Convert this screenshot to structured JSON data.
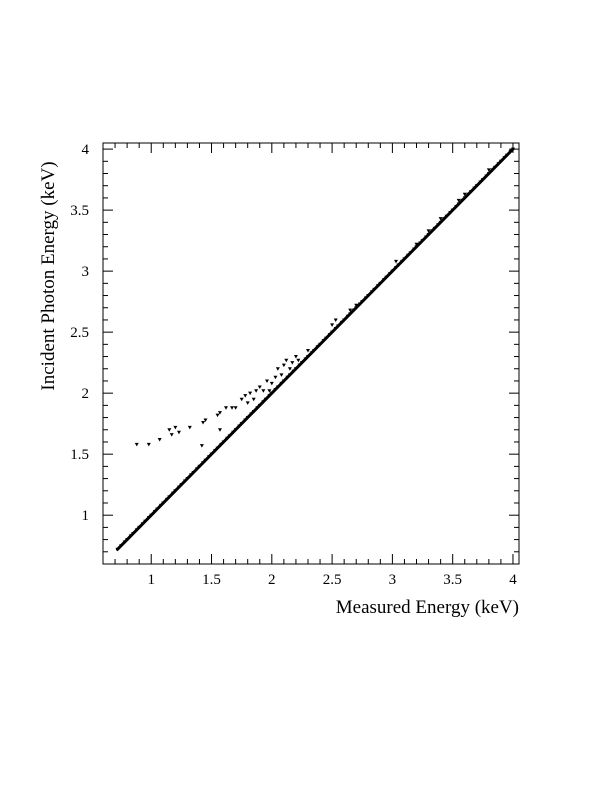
{
  "chart_data": {
    "type": "scatter",
    "title": "",
    "xlabel": "Measured Energy (keV)",
    "ylabel": "Incident Photon Energy (keV)",
    "xlim": [
      0.6,
      4.05
    ],
    "ylim": [
      0.6,
      4.05
    ],
    "xticks": [
      1,
      1.5,
      2,
      2.5,
      3,
      3.5,
      4
    ],
    "xtick_labels": [
      "1",
      "1.5",
      "2",
      "2.5",
      "3",
      "3.5",
      "4"
    ],
    "yticks": [
      1,
      1.5,
      2,
      2.5,
      3,
      3.5,
      4
    ],
    "ytick_labels": [
      "1",
      "1.5",
      "2",
      "2.5",
      "3",
      "3.5",
      "4"
    ],
    "grid": false,
    "legend": "none",
    "marker_color": "#000000",
    "series": [
      {
        "x": [
          0.72,
          0.75,
          0.78,
          0.8,
          0.83,
          0.85,
          0.88,
          0.9,
          0.93,
          0.95,
          0.98,
          1.0,
          1.03,
          1.05,
          1.08,
          1.1,
          1.13,
          1.15,
          1.18,
          1.2,
          1.23,
          1.25,
          1.28,
          1.3,
          1.33,
          1.35,
          1.38,
          1.4,
          1.43,
          1.45,
          1.48,
          1.5,
          1.53,
          1.55,
          1.58,
          1.6,
          1.63,
          1.65,
          1.68,
          1.7,
          1.73,
          1.75,
          1.78,
          1.8,
          1.83,
          1.85,
          1.88,
          1.9,
          1.93,
          1.95,
          1.98,
          2.0,
          2.03,
          2.05,
          2.08,
          2.1,
          2.13,
          2.15,
          2.18,
          2.2,
          2.23,
          2.25,
          2.28,
          2.3,
          2.33,
          2.35,
          2.38,
          2.4,
          2.43,
          2.45,
          2.48,
          2.5,
          2.53,
          2.55,
          2.58,
          2.6,
          2.63,
          2.65,
          2.68,
          2.7,
          2.73,
          2.75,
          2.78,
          2.8,
          2.83,
          2.85,
          2.88,
          2.9,
          2.93,
          2.95,
          2.98,
          3.0,
          3.03,
          3.05,
          3.08,
          3.1,
          3.13,
          3.15,
          3.18,
          3.2,
          3.23,
          3.25,
          3.28,
          3.3,
          3.33,
          3.35,
          3.38,
          3.4,
          3.43,
          3.45,
          3.48,
          3.5,
          3.53,
          3.55,
          3.58,
          3.6,
          3.63,
          3.65,
          3.68,
          3.7,
          3.73,
          3.75,
          3.78,
          3.8,
          3.83,
          3.85,
          3.88,
          3.9,
          3.93,
          3.95,
          3.98,
          4.0,
          0.88,
          0.98,
          1.07,
          1.15,
          1.17,
          1.2,
          1.23,
          1.32,
          1.43,
          1.45,
          1.42,
          1.55,
          1.57,
          1.57,
          1.62,
          1.67,
          1.7,
          1.75,
          1.78,
          1.8,
          1.82,
          1.85,
          1.87,
          1.9,
          1.93,
          1.96,
          1.98,
          2.0,
          2.03,
          2.05,
          2.08,
          2.1,
          2.12,
          2.15,
          2.17,
          2.2,
          2.22,
          2.3,
          2.5,
          2.53,
          2.65,
          2.7,
          3.03,
          3.2,
          3.3,
          3.4,
          3.55,
          3.6,
          3.8
        ],
        "y": [
          0.72,
          0.75,
          0.78,
          0.8,
          0.83,
          0.85,
          0.88,
          0.9,
          0.93,
          0.95,
          0.98,
          1.0,
          1.03,
          1.05,
          1.08,
          1.1,
          1.13,
          1.15,
          1.18,
          1.2,
          1.23,
          1.25,
          1.28,
          1.3,
          1.33,
          1.35,
          1.38,
          1.4,
          1.43,
          1.45,
          1.48,
          1.5,
          1.53,
          1.55,
          1.58,
          1.6,
          1.63,
          1.65,
          1.68,
          1.7,
          1.73,
          1.75,
          1.78,
          1.8,
          1.83,
          1.85,
          1.88,
          1.9,
          1.93,
          1.95,
          1.98,
          2.0,
          2.03,
          2.05,
          2.08,
          2.1,
          2.13,
          2.15,
          2.18,
          2.2,
          2.23,
          2.25,
          2.28,
          2.3,
          2.33,
          2.35,
          2.38,
          2.4,
          2.43,
          2.45,
          2.48,
          2.5,
          2.53,
          2.55,
          2.58,
          2.6,
          2.63,
          2.65,
          2.68,
          2.7,
          2.73,
          2.75,
          2.78,
          2.8,
          2.83,
          2.85,
          2.88,
          2.9,
          2.93,
          2.95,
          2.98,
          3.0,
          3.03,
          3.05,
          3.08,
          3.1,
          3.13,
          3.15,
          3.18,
          3.2,
          3.23,
          3.25,
          3.28,
          3.3,
          3.33,
          3.35,
          3.38,
          3.4,
          3.43,
          3.45,
          3.48,
          3.5,
          3.53,
          3.55,
          3.58,
          3.6,
          3.63,
          3.65,
          3.68,
          3.7,
          3.73,
          3.75,
          3.78,
          3.8,
          3.83,
          3.85,
          3.88,
          3.9,
          3.93,
          3.95,
          3.98,
          4.0,
          1.58,
          1.58,
          1.62,
          1.7,
          1.66,
          1.72,
          1.68,
          1.72,
          1.76,
          1.78,
          1.57,
          1.82,
          1.7,
          1.84,
          1.88,
          1.88,
          1.88,
          1.95,
          1.98,
          1.92,
          2.0,
          1.95,
          2.02,
          2.05,
          2.02,
          2.1,
          2.02,
          2.08,
          2.13,
          2.2,
          2.15,
          2.23,
          2.27,
          2.2,
          2.25,
          2.3,
          2.27,
          2.35,
          2.56,
          2.6,
          2.68,
          2.72,
          3.08,
          3.22,
          3.33,
          3.43,
          3.58,
          3.63,
          3.83
        ]
      }
    ]
  }
}
